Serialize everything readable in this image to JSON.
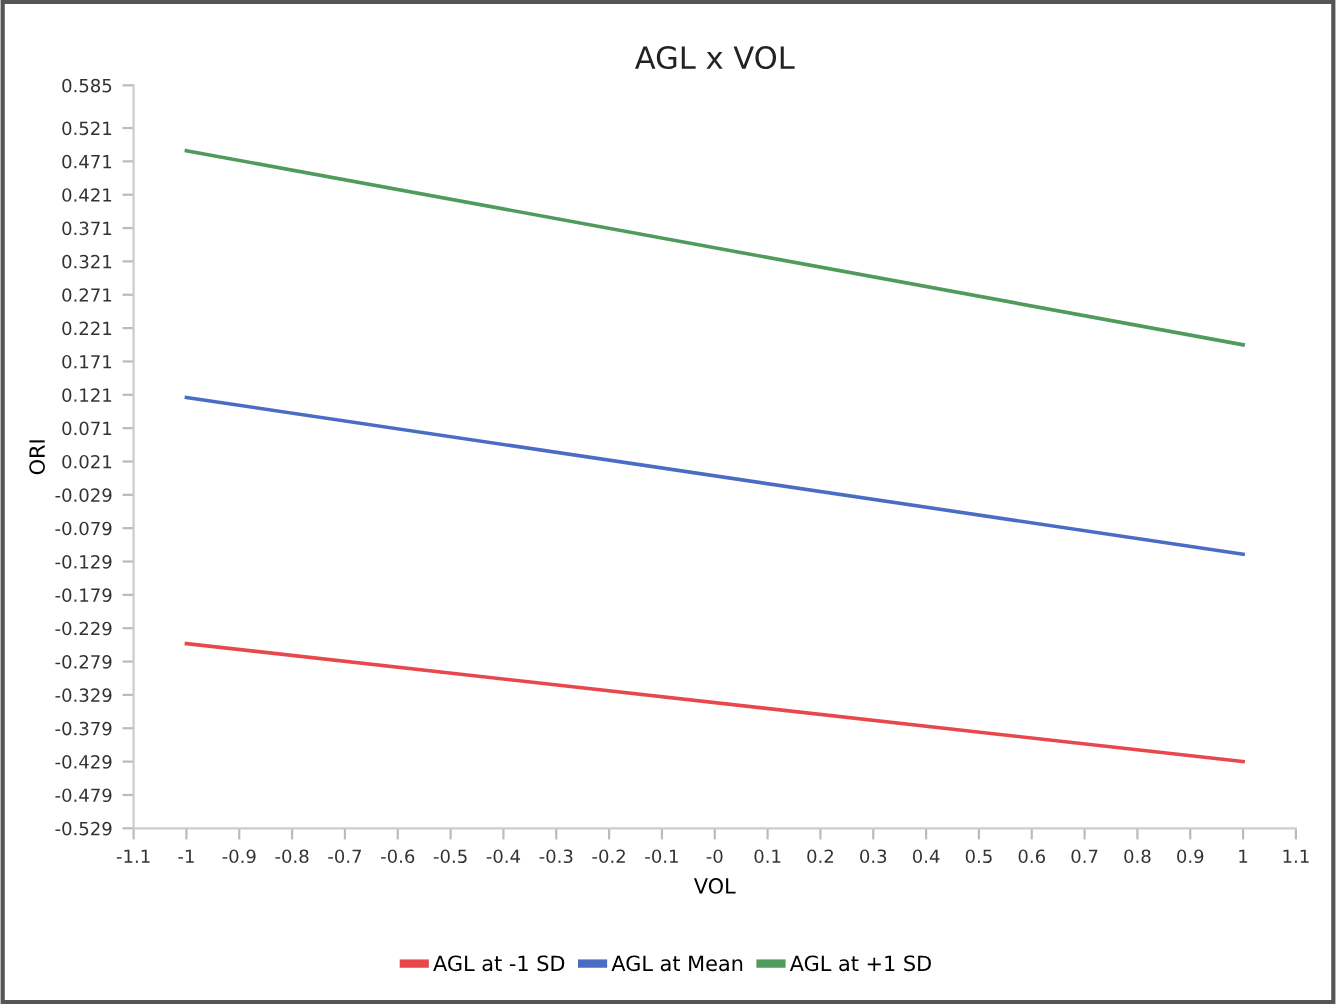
{
  "chart_data": {
    "type": "line",
    "title": "AGL x VOL",
    "xlabel": "VOL",
    "ylabel": "ORI",
    "x": [
      -1,
      1
    ],
    "series": [
      {
        "name": "AGL at -1 SD",
        "color": "#e8474c",
        "values": [
          -0.252,
          -0.429
        ]
      },
      {
        "name": "AGL at Mean",
        "color": "#4a6cc4",
        "values": [
          0.117,
          -0.118
        ]
      },
      {
        "name": "AGL at +1 SD",
        "color": "#4f9a5c",
        "values": [
          0.487,
          0.196
        ]
      }
    ],
    "xlim": [
      -1.1,
      1.1
    ],
    "xticks": [
      -1.1,
      -1,
      -0.9,
      -0.8,
      -0.7,
      -0.6,
      -0.5,
      -0.4,
      -0.3,
      -0.2,
      -0.1,
      {
        "value": 0,
        "label": "-0"
      },
      0.1,
      0.2,
      0.3,
      0.4,
      0.5,
      0.6,
      0.7,
      0.8,
      0.9,
      1,
      1.1
    ],
    "ylim": [
      -0.529,
      0.585
    ],
    "yticks": [
      0.585,
      0.521,
      0.471,
      0.421,
      0.371,
      0.321,
      0.271,
      0.221,
      0.171,
      0.121,
      0.071,
      0.021,
      -0.029,
      -0.079,
      -0.129,
      -0.179,
      -0.229,
      -0.279,
      -0.329,
      -0.379,
      -0.429,
      -0.479,
      -0.529
    ],
    "grid": false,
    "legend": "bottom",
    "marker": "none",
    "line_style": "solid"
  }
}
